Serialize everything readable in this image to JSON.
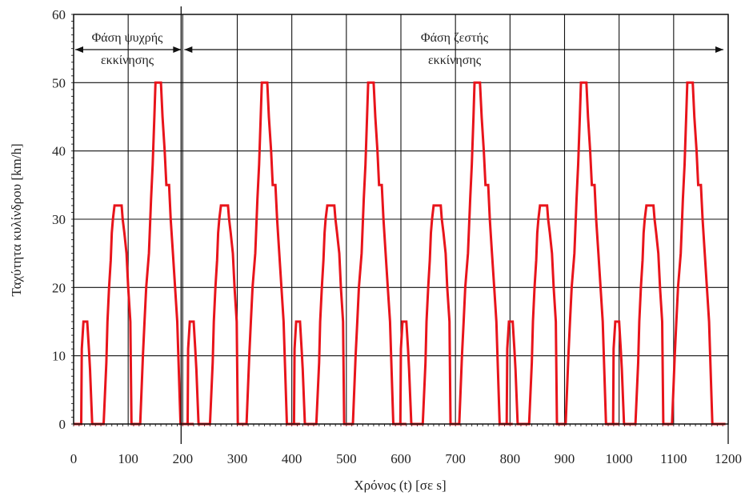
{
  "chart_data": {
    "type": "line",
    "title": "",
    "xlabel": "Χρόνος (t) [σε s]",
    "ylabel": "Ταχύτητα κυλίνδρου [km/h]",
    "xlim": [
      0,
      1200
    ],
    "ylim": [
      0,
      60
    ],
    "x_ticks": [
      0,
      100,
      200,
      300,
      400,
      500,
      600,
      700,
      800,
      900,
      1000,
      1100,
      1200
    ],
    "y_ticks": [
      0,
      10,
      20,
      30,
      40,
      50,
      60
    ],
    "grid": true,
    "line_color": "#e8141b",
    "annotations": {
      "cold_phase": {
        "line1": "Φάση ψυχρής",
        "line2": "εκκίνησης",
        "x_range": [
          0,
          200
        ]
      },
      "hot_phase": {
        "line1": "Φάση ζεστής",
        "line2": "εκκίνησης",
        "x_range": [
          200,
          1200
        ]
      }
    },
    "series": [
      {
        "x": [
          0,
          14,
          15,
          18,
          25,
          28,
          30,
          34,
          36,
          55,
          60,
          62,
          65,
          68,
          70,
          72,
          75,
          88,
          90,
          93,
          97,
          100,
          104,
          106,
          122,
          127,
          130,
          133,
          138,
          142,
          145,
          148,
          150,
          160,
          163,
          167,
          170,
          175,
          178,
          182,
          186,
          190,
          196,
          220
        ],
        "y": [
          0,
          0,
          11,
          15,
          15,
          11,
          8,
          0,
          0,
          0,
          9,
          15,
          20,
          24,
          28,
          30,
          32,
          32,
          30,
          28,
          25,
          20,
          15,
          0,
          0,
          10,
          15,
          20,
          25,
          33,
          38,
          45,
          50,
          50,
          45,
          40,
          35,
          35,
          30,
          25,
          20,
          15,
          0,
          0
        ]
      }
    ]
  }
}
